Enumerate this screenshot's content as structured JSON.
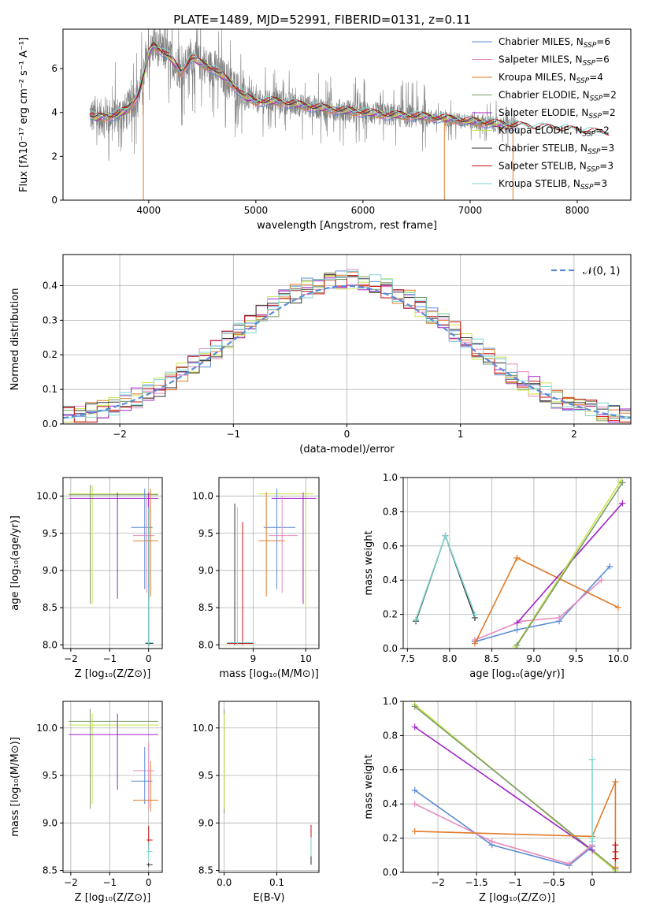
{
  "colors": {
    "chabrier_miles": "#5b8bd6",
    "salpeter_miles": "#e88bc0",
    "kroupa_miles": "#e07b2a",
    "chabrier_elodie": "#7a9a6a",
    "salpeter_elodie": "#a020c8",
    "kroupa_elodie": "#c8e64a",
    "chabrier_stelib": "#333333",
    "salpeter_stelib": "#cc1111",
    "kroupa_stelib": "#7fd6d0",
    "data": "#808080",
    "normal": "#5b8bd6"
  },
  "chart_data": [
    {
      "id": "spectrum",
      "type": "line",
      "title": "PLATE=1489, MJD=52991, FIBERID=0131, z=0.11",
      "xlabel": "wavelength [Angstrom, rest frame]",
      "ylabel": "Flux [fλ10⁻¹⁷ erg cm⁻² s⁻¹ A⁻¹]",
      "xlim": [
        3200,
        8500
      ],
      "ylim": [
        0,
        7.8
      ],
      "xticks": [
        4000,
        5000,
        6000,
        7000,
        8000
      ],
      "yticks": [
        0,
        2,
        4,
        6
      ],
      "legend_position": "top-right",
      "legend": [
        {
          "label": "Chabrier MILES, N",
          "sub": "SSP",
          "tail": "=6",
          "color_key": "chabrier_miles"
        },
        {
          "label": "Salpeter MILES, N",
          "sub": "SSP",
          "tail": "=6",
          "color_key": "salpeter_miles"
        },
        {
          "label": "Kroupa MILES, N",
          "sub": "SSP",
          "tail": "=4",
          "color_key": "kroupa_miles"
        },
        {
          "label": "Chabrier ELODIE, N",
          "sub": "SSP",
          "tail": "=2",
          "color_key": "chabrier_elodie"
        },
        {
          "label": "Salpeter ELODIE, N",
          "sub": "SSP",
          "tail": "=2",
          "color_key": "salpeter_elodie"
        },
        {
          "label": "Kroupa ELODIE, N",
          "sub": "SSP",
          "tail": "=2",
          "color_key": "kroupa_elodie"
        },
        {
          "label": "Chabrier STELIB, N",
          "sub": "SSP",
          "tail": "=3",
          "color_key": "chabrier_stelib"
        },
        {
          "label": "Salpeter STELIB, N",
          "sub": "SSP",
          "tail": "=3",
          "color_key": "salpeter_stelib"
        },
        {
          "label": "Kroupa STELIB, N",
          "sub": "SSP",
          "tail": "=3",
          "color_key": "kroupa_stelib"
        }
      ],
      "continuum": [
        [
          3450,
          3.9
        ],
        [
          3500,
          3.75
        ],
        [
          3600,
          3.8
        ],
        [
          3700,
          3.9
        ],
        [
          3800,
          4.1
        ],
        [
          3900,
          4.8
        ],
        [
          3950,
          5.6
        ],
        [
          4000,
          6.7
        ],
        [
          4050,
          7.05
        ],
        [
          4100,
          6.9
        ],
        [
          4200,
          6.5
        ],
        [
          4300,
          5.8
        ],
        [
          4400,
          6.5
        ],
        [
          4500,
          6.2
        ],
        [
          4600,
          6.0
        ],
        [
          4700,
          5.6
        ],
        [
          4800,
          5.2
        ],
        [
          4900,
          4.7
        ],
        [
          5000,
          4.5
        ],
        [
          5200,
          4.5
        ],
        [
          5400,
          4.35
        ],
        [
          5600,
          4.2
        ],
        [
          5800,
          4.1
        ],
        [
          6000,
          4.0
        ],
        [
          6200,
          3.9
        ],
        [
          6400,
          3.85
        ],
        [
          6600,
          3.8
        ],
        [
          6800,
          3.7
        ],
        [
          7000,
          3.6
        ],
        [
          7200,
          3.5
        ],
        [
          7400,
          3.4
        ],
        [
          7600,
          3.3
        ],
        [
          7800,
          3.25
        ],
        [
          8000,
          3.15
        ],
        [
          8200,
          3.05
        ],
        [
          8300,
          3.0
        ]
      ],
      "data_extent": [
        3450,
        7450
      ],
      "dropouts": [
        [
          3950,
          0
        ],
        [
          6760,
          0
        ],
        [
          7400,
          0
        ]
      ]
    },
    {
      "id": "residuals",
      "type": "bar",
      "xlabel": "(data-model)/error",
      "ylabel": "Normed distribution",
      "xlim": [
        -2.5,
        2.5
      ],
      "ylim": [
        0,
        0.49
      ],
      "xticks": [
        -2,
        -1,
        0,
        1,
        2
      ],
      "yticks": [
        0,
        0.1,
        0.2,
        0.3,
        0.4
      ],
      "legend_position": "top-right",
      "legend_label": "𝒩(0, 1)",
      "bin_width": 0.1
    },
    {
      "id": "age_vs_Z",
      "type": "scatter",
      "xlabel": "Z [log₁₀(Z/Z⊙)]",
      "ylabel": "age  [log₁₀(age/yr)]",
      "xlim": [
        -2.2,
        0.35
      ],
      "ylim": [
        7.95,
        10.25
      ],
      "xticks": [
        -2,
        -1,
        0
      ],
      "yticks": [
        8.0,
        8.5,
        9.0,
        9.5,
        10.0
      ],
      "points": [
        {
          "c": "kroupa_elodie",
          "x": -1.45,
          "y": 10.03,
          "xl": -2.05,
          "xh": 0.25,
          "yl": 8.55,
          "yh": 10.15
        },
        {
          "c": "chabrier_elodie",
          "x": -1.5,
          "y": 10.02,
          "xl": -2.05,
          "xh": 0.25,
          "yl": 8.55,
          "yh": 10.15
        },
        {
          "c": "salpeter_elodie",
          "x": -0.8,
          "y": 9.97,
          "xl": -2.05,
          "xh": 0.25,
          "yl": 8.62,
          "yh": 10.05
        },
        {
          "c": "salpeter_elodie",
          "x": 0.0,
          "y": 9.97,
          "xl": -0.05,
          "xh": 0.05,
          "yl": 8.62,
          "yh": 10.05
        },
        {
          "c": "chabrier_miles",
          "x": -0.1,
          "y": 9.58,
          "xl": -0.45,
          "xh": 0.1,
          "yl": 8.75,
          "yh": 10.1
        },
        {
          "c": "salpeter_miles",
          "x": -0.05,
          "y": 9.47,
          "xl": -0.4,
          "xh": 0.15,
          "yl": 8.7,
          "yh": 10.0
        },
        {
          "c": "kroupa_miles",
          "x": 0.05,
          "y": 9.4,
          "xl": -0.4,
          "xh": 0.25,
          "yl": 8.65,
          "yh": 10.1
        },
        {
          "c": "chabrier_stelib",
          "x": 0.0,
          "y": 8.02,
          "xl": -0.08,
          "xh": 0.12,
          "yl": 7.98,
          "yh": 9.85
        },
        {
          "c": "kroupa_stelib",
          "x": 0.0,
          "y": 8.03,
          "xl": -0.08,
          "xh": 0.12,
          "yl": 7.98,
          "yh": 9.85
        }
      ]
    },
    {
      "id": "age_vs_mass",
      "type": "scatter",
      "xlabel": "mass [log₁₀(M/M⊙)]",
      "ylabel": "",
      "xlim": [
        8.35,
        10.25
      ],
      "ylim": [
        7.95,
        10.25
      ],
      "xticks": [
        9,
        10
      ],
      "yticks": [
        8.0,
        8.5,
        9.0,
        9.5,
        10.0
      ],
      "points": [
        {
          "c": "kroupa_elodie",
          "x": 10.0,
          "y": 10.03,
          "xl": 9.1,
          "xh": 10.15,
          "yl": 8.5,
          "yh": 10.12
        },
        {
          "c": "salpeter_elodie",
          "x": 9.95,
          "y": 9.97,
          "xl": 9.35,
          "xh": 10.2,
          "yl": 8.55,
          "yh": 10.05
        },
        {
          "c": "chabrier_miles",
          "x": 9.45,
          "y": 9.58,
          "xl": 9.2,
          "xh": 9.8,
          "yl": 8.75,
          "yh": 10.1
        },
        {
          "c": "salpeter_miles",
          "x": 9.55,
          "y": 9.47,
          "xl": 9.3,
          "xh": 9.85,
          "yl": 8.7,
          "yh": 10.0
        },
        {
          "c": "kroupa_miles",
          "x": 9.25,
          "y": 9.4,
          "xl": 9.1,
          "xh": 9.6,
          "yl": 8.65,
          "yh": 10.05
        },
        {
          "c": "chabrier_stelib",
          "x": 8.65,
          "y": 8.02,
          "xl": 8.5,
          "xh": 9.0,
          "yl": 8.0,
          "yh": 9.9
        },
        {
          "c": "salpeter_stelib",
          "x": 8.8,
          "y": 8.02,
          "xl": 8.5,
          "xh": 9.0,
          "yl": 8.0,
          "yh": 9.65
        },
        {
          "c": "kroupa_stelib",
          "x": 8.7,
          "y": 8.03,
          "xl": 8.5,
          "xh": 9.0,
          "yl": 8.0,
          "yh": 9.85
        }
      ]
    },
    {
      "id": "mass_weight_vs_age",
      "type": "line",
      "xlabel": "age  [log₁₀(age/yr)]",
      "ylabel": "mass weight",
      "xlim": [
        7.45,
        10.15
      ],
      "ylim": [
        0,
        1.0
      ],
      "xticks": [
        7.5,
        8.0,
        8.5,
        9.0,
        9.5,
        10.0
      ],
      "yticks": [
        0.0,
        0.2,
        0.4,
        0.6,
        0.8,
        1.0
      ],
      "series": [
        {
          "c": "chabrier_stelib",
          "x": [
            7.6,
            7.95,
            8.3
          ],
          "y": [
            0.16,
            0.66,
            0.18
          ]
        },
        {
          "c": "kroupa_stelib",
          "x": [
            7.6,
            7.95,
            8.3
          ],
          "y": [
            0.17,
            0.66,
            0.2
          ]
        },
        {
          "c": "chabrier_miles",
          "x": [
            8.3,
            8.8,
            9.3,
            9.9
          ],
          "y": [
            0.04,
            0.11,
            0.16,
            0.48
          ]
        },
        {
          "c": "salpeter_miles",
          "x": [
            8.3,
            8.85,
            9.3,
            9.8
          ],
          "y": [
            0.05,
            0.16,
            0.18,
            0.4
          ]
        },
        {
          "c": "kroupa_miles",
          "x": [
            8.3,
            8.8,
            10.0
          ],
          "y": [
            0.03,
            0.53,
            0.24
          ]
        },
        {
          "c": "salpeter_elodie",
          "x": [
            8.8,
            10.05
          ],
          "y": [
            0.15,
            0.85
          ]
        },
        {
          "c": "kroupa_elodie",
          "x": [
            8.78,
            10.03
          ],
          "y": [
            0.01,
            0.98
          ]
        },
        {
          "c": "chabrier_elodie",
          "x": [
            8.8,
            10.05
          ],
          "y": [
            0.02,
            0.97
          ]
        }
      ]
    },
    {
      "id": "mass_vs_Z",
      "type": "scatter",
      "xlabel": "Z [log₁₀(Z/Z⊙)]",
      "ylabel": "mass [log₁₀(M/M⊙)]",
      "xlim": [
        -2.2,
        0.35
      ],
      "ylim": [
        8.48,
        10.28
      ],
      "xticks": [
        -2,
        -1,
        0
      ],
      "yticks": [
        8.5,
        9.0,
        9.5,
        10.0
      ],
      "points": [
        {
          "c": "chabrier_elodie",
          "x": -1.5,
          "y": 10.07,
          "xl": -2.05,
          "xh": 0.25,
          "yl": 9.15,
          "yh": 10.2
        },
        {
          "c": "kroupa_elodie",
          "x": -1.45,
          "y": 10.03,
          "xl": -2.05,
          "xh": 0.25,
          "yl": 9.2,
          "yh": 10.15
        },
        {
          "c": "salpeter_elodie",
          "x": -0.8,
          "y": 9.93,
          "xl": -2.05,
          "xh": 0.25,
          "yl": 9.35,
          "yh": 10.15
        },
        {
          "c": "salpeter_miles",
          "x": 0.0,
          "y": 9.55,
          "xl": -0.4,
          "xh": 0.15,
          "yl": 9.15,
          "yh": 9.85
        },
        {
          "c": "chabrier_miles",
          "x": -0.1,
          "y": 9.44,
          "xl": -0.45,
          "xh": 0.1,
          "yl": 9.2,
          "yh": 9.8
        },
        {
          "c": "kroupa_miles",
          "x": 0.05,
          "y": 9.24,
          "xl": -0.4,
          "xh": 0.25,
          "yl": 9.12,
          "yh": 9.65
        },
        {
          "c": "salpeter_stelib",
          "x": 0.0,
          "y": 8.82,
          "xl": -0.05,
          "xh": 0.1,
          "yl": 8.72,
          "yh": 8.97
        },
        {
          "c": "kroupa_stelib",
          "x": 0.0,
          "y": 8.7,
          "xl": -0.05,
          "xh": 0.1,
          "yl": 8.6,
          "yh": 8.8
        },
        {
          "c": "chabrier_stelib",
          "x": 0.0,
          "y": 8.56,
          "xl": -0.05,
          "xh": 0.1,
          "yl": 8.54,
          "yh": 8.58
        }
      ]
    },
    {
      "id": "mass_vs_EBV",
      "type": "scatter",
      "xlabel": "E(B-V)",
      "ylabel": "",
      "xlim": [
        -0.01,
        0.18
      ],
      "ylim": [
        8.48,
        10.28
      ],
      "xticks": [
        0.0,
        0.1
      ],
      "yticks": [
        8.5,
        9.0,
        9.5,
        10.0
      ],
      "points": [
        {
          "c": "chabrier_elodie",
          "x": 0.0,
          "y": 9.7,
          "xl": 0.0,
          "xh": 0.0,
          "yl": 9.1,
          "yh": 10.2
        },
        {
          "c": "kroupa_elodie",
          "x": 0.0,
          "y": 9.7,
          "xl": 0.0,
          "xh": 0.0,
          "yl": 9.15,
          "yh": 10.15
        },
        {
          "c": "salpeter_stelib",
          "x": 0.165,
          "y": 8.85,
          "xl": 0.165,
          "xh": 0.165,
          "yl": 8.72,
          "yh": 8.98
        },
        {
          "c": "kroupa_stelib",
          "x": 0.165,
          "y": 8.72,
          "xl": 0.165,
          "xh": 0.165,
          "yl": 8.58,
          "yh": 8.85
        },
        {
          "c": "chabrier_stelib",
          "x": 0.165,
          "y": 8.6,
          "xl": 0.165,
          "xh": 0.165,
          "yl": 8.56,
          "yh": 8.65
        }
      ]
    },
    {
      "id": "mass_weight_vs_Z",
      "type": "line",
      "xlabel": "Z [log₁₀(Z/Z⊙)]",
      "ylabel": "mass weight",
      "xlim": [
        -2.45,
        0.5
      ],
      "ylim": [
        0,
        1.0
      ],
      "xticks": [
        -2.0,
        -1.5,
        -1.0,
        -0.5,
        0.0
      ],
      "yticks": [
        0.0,
        0.2,
        0.4,
        0.6,
        0.8,
        1.0
      ],
      "series": [
        {
          "c": "kroupa_elodie",
          "x": [
            -2.3,
            0.3
          ],
          "y": [
            0.98,
            0.01
          ]
        },
        {
          "c": "chabrier_elodie",
          "x": [
            -2.3,
            0.3
          ],
          "y": [
            0.97,
            0.02
          ]
        },
        {
          "c": "salpeter_elodie",
          "x": [
            -2.3,
            0.0
          ],
          "y": [
            0.85,
            0.13
          ]
        },
        {
          "c": "chabrier_miles",
          "x": [
            -2.3,
            -1.3,
            -0.3,
            0.0
          ],
          "y": [
            0.48,
            0.16,
            0.04,
            0.15
          ]
        },
        {
          "c": "salpeter_miles",
          "x": [
            -2.3,
            -1.3,
            -0.3,
            0.0
          ],
          "y": [
            0.4,
            0.18,
            0.05,
            0.16
          ]
        },
        {
          "c": "kroupa_miles",
          "x": [
            -2.3,
            0.0,
            0.3,
            0.3
          ],
          "y": [
            0.24,
            0.21,
            0.53,
            0.03
          ]
        },
        {
          "c": "kroupa_stelib",
          "x": [
            0.0,
            0.0,
            0.0
          ],
          "y": [
            0.66,
            0.18,
            0.2
          ]
        },
        {
          "c": "salpeter_stelib",
          "x": [
            0.3,
            0.3,
            0.3
          ],
          "y": [
            0.16,
            0.12,
            0.08
          ]
        }
      ]
    }
  ]
}
